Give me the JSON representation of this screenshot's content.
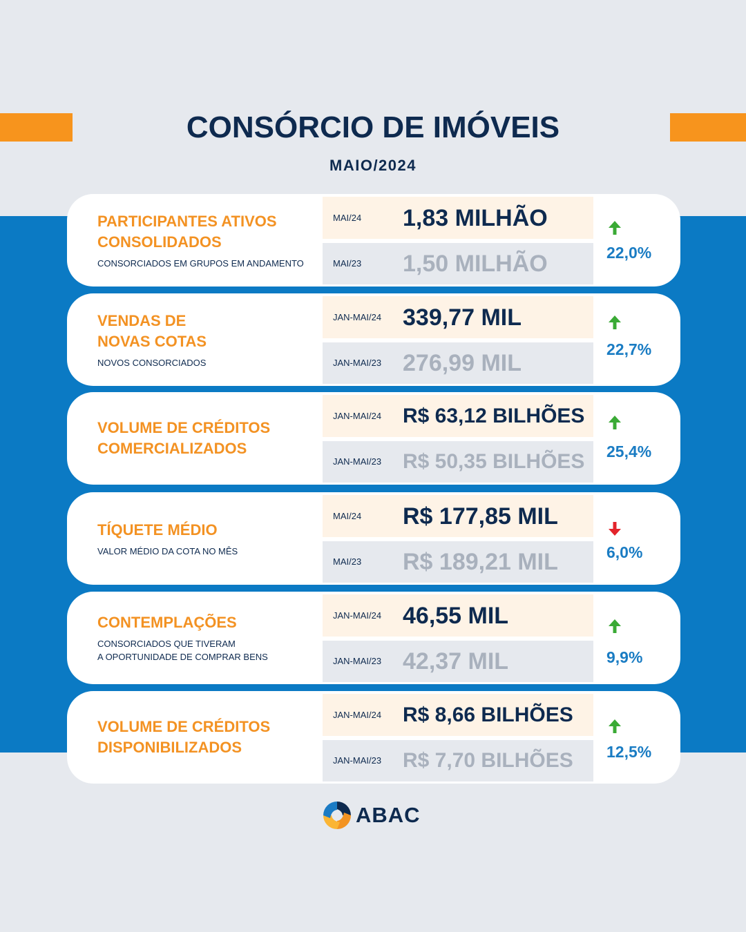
{
  "header": {
    "title": "CONSÓRCIO DE IMÓVEIS",
    "subtitle": "MAIO/2024"
  },
  "cards": [
    {
      "title_lines": [
        "PARTICIPANTES ATIVOS",
        "CONSOLIDADOS"
      ],
      "subtitle_lines": [
        "CONSORCIADOS EM GRUPOS EM ANDAMENTO"
      ],
      "current": {
        "period": "MAI/24",
        "value": "1,83 MILHÃO"
      },
      "previous": {
        "period": "MAI/23",
        "value": "1,50 MILHÃO"
      },
      "trend_icon": "arrow-up-icon",
      "change": "22,0%"
    },
    {
      "title_lines": [
        "VENDAS DE",
        "NOVAS COTAS"
      ],
      "subtitle_lines": [
        "NOVOS CONSORCIADOS"
      ],
      "current": {
        "period": "JAN-MAI/24",
        "value": "339,77 MIL"
      },
      "previous": {
        "period": "JAN-MAI/23",
        "value": "276,99 MIL"
      },
      "trend_icon": "arrow-up-icon",
      "change": "22,7%"
    },
    {
      "title_lines": [
        "VOLUME DE CRÉDITOS",
        "COMERCIALIZADOS"
      ],
      "subtitle_lines": [],
      "current": {
        "period": "JAN-MAI/24",
        "value": "R$ 63,12 BILHÕES"
      },
      "previous": {
        "period": "JAN-MAI/23",
        "value": "R$ 50,35 BILHÕES"
      },
      "trend_icon": "arrow-up-icon",
      "change": "25,4%"
    },
    {
      "title_lines": [
        "TÍQUETE MÉDIO"
      ],
      "subtitle_lines": [
        "VALOR MÉDIO DA COTA NO MÊS"
      ],
      "current": {
        "period": "MAI/24",
        "value": "R$ 177,85 MIL"
      },
      "previous": {
        "period": "MAI/23",
        "value": "R$ 189,21 MIL"
      },
      "trend_icon": "arrow-down-icon",
      "change": "6,0%"
    },
    {
      "title_lines": [
        "CONTEMPLAÇÕES"
      ],
      "subtitle_lines": [
        "CONSORCIADOS QUE TIVERAM",
        "A OPORTUNIDADE DE COMPRAR BENS"
      ],
      "current": {
        "period": "JAN-MAI/24",
        "value": "46,55 MIL"
      },
      "previous": {
        "period": "JAN-MAI/23",
        "value": "42,37 MIL"
      },
      "trend_icon": "arrow-up-icon",
      "change": "9,9%"
    },
    {
      "title_lines": [
        "VOLUME DE CRÉDITOS",
        "DISPONIBILIZADOS"
      ],
      "subtitle_lines": [],
      "current": {
        "period": "JAN-MAI/24",
        "value": "R$ 8,66 BILHÕES"
      },
      "previous": {
        "period": "JAN-MAI/23",
        "value": "R$ 7,70 BILHÕES"
      },
      "trend_icon": "arrow-up-icon",
      "change": "12,5%"
    }
  ],
  "footer": {
    "logo_text": "ABAC",
    "logo_icon": "abac-logo-icon"
  },
  "colors": {
    "navy": "#0e2a4f",
    "orange": "#f39223",
    "accent_bar": "#f7941d",
    "band_blue": "#0b7ac4",
    "background": "#e6e9ee",
    "current_row": "#fef3e6",
    "muted_value": "#a9b1bd",
    "percent_blue": "#1a7cc3",
    "trend_up": "#3aaa35",
    "trend_down": "#e3242b"
  }
}
